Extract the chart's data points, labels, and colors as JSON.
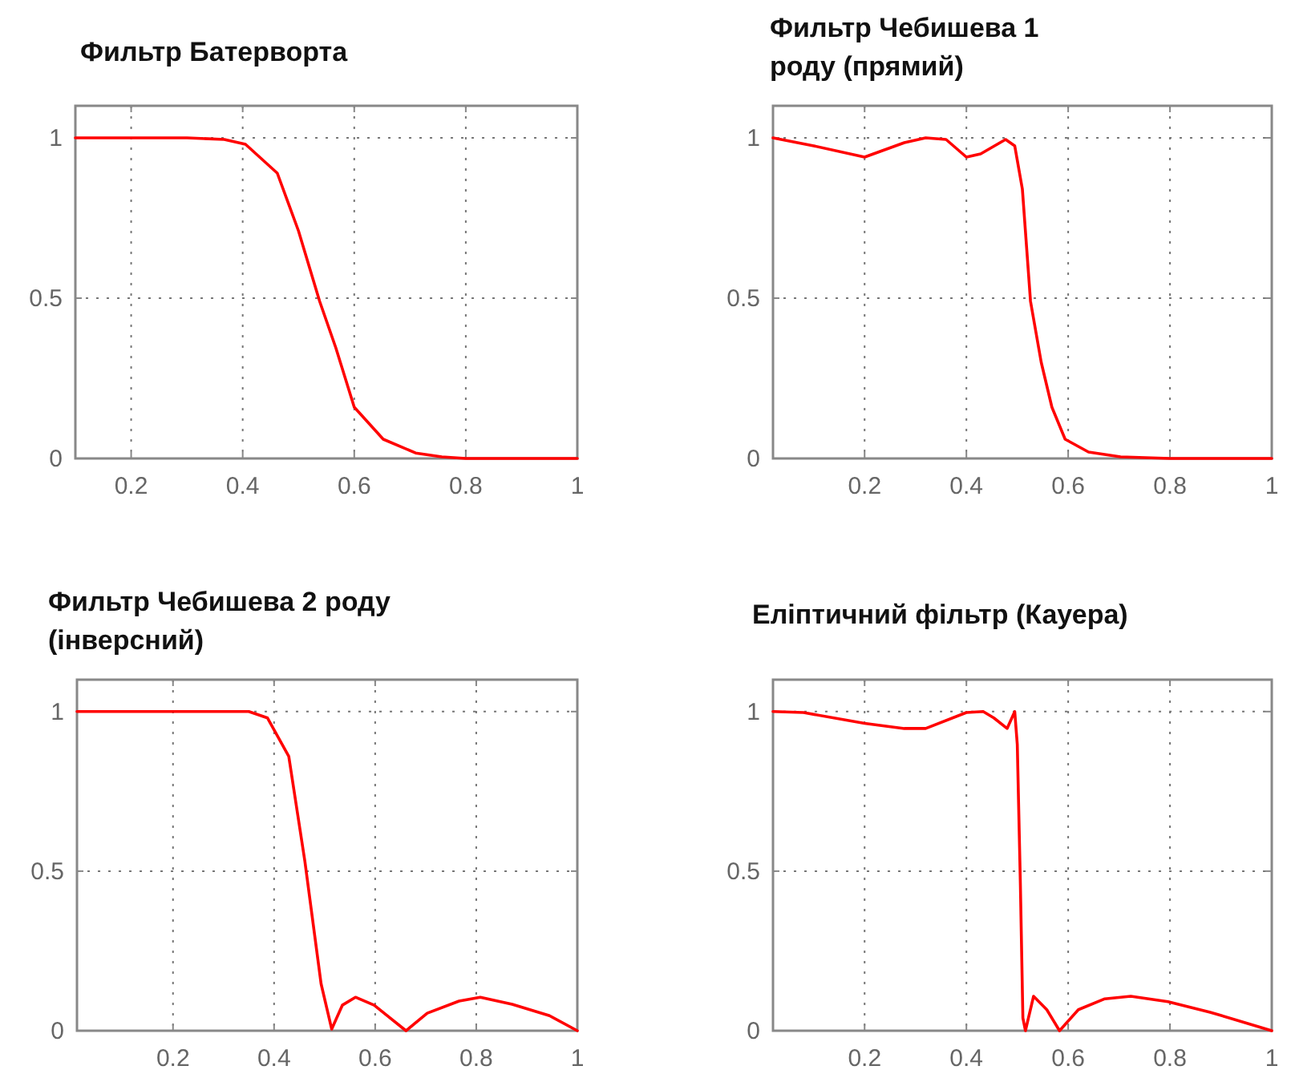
{
  "chart_data": [
    {
      "type": "line",
      "title": "Фильтр Батерворта",
      "xlim": [
        0.1,
        1
      ],
      "ylim": [
        0,
        1.1
      ],
      "xticks": [
        0.2,
        0.4,
        0.6,
        0.8,
        1
      ],
      "yticks": [
        0,
        0.5,
        1
      ],
      "grid": true,
      "line_style": "solid",
      "series": [
        {
          "color": "#ff0000",
          "x": [
            0.1,
            0.2,
            0.3,
            0.367,
            0.405,
            0.462,
            0.5,
            0.538,
            0.567,
            0.6,
            0.652,
            0.71,
            0.757,
            0.8,
            0.9,
            1
          ],
          "values": [
            1,
            1,
            1,
            0.995,
            0.98,
            0.89,
            0.71,
            0.49,
            0.345,
            0.16,
            0.06,
            0.017,
            0.005,
            0,
            0,
            0
          ]
        }
      ]
    },
    {
      "type": "line",
      "title": "Фильтр Чебишева 1\nроду (прямий)",
      "xlim": [
        0.02,
        1
      ],
      "ylim": [
        0,
        1.1
      ],
      "xticks": [
        0.2,
        0.4,
        0.6,
        0.8,
        1
      ],
      "yticks": [
        0,
        0.5,
        1
      ],
      "grid": true,
      "line_style": "solid",
      "series": [
        {
          "color": "#ff0000",
          "x": [
            0.02,
            0.1,
            0.2,
            0.278,
            0.32,
            0.36,
            0.4,
            0.428,
            0.477,
            0.495,
            0.51,
            0.526,
            0.547,
            0.568,
            0.594,
            0.64,
            0.703,
            0.8,
            1
          ],
          "values": [
            1,
            0.975,
            0.94,
            0.985,
            1,
            0.995,
            0.94,
            0.95,
            0.995,
            0.975,
            0.84,
            0.49,
            0.3,
            0.16,
            0.06,
            0.02,
            0.005,
            0,
            0
          ]
        }
      ]
    },
    {
      "type": "line",
      "title": "Фильтр Чебишева 2 роду\n(інверсний)",
      "xlim": [
        0.01,
        1
      ],
      "ylim": [
        0,
        1.1
      ],
      "xticks": [
        0.2,
        0.4,
        0.6,
        0.8,
        1
      ],
      "yticks": [
        0,
        0.5,
        1
      ],
      "grid": true,
      "line_style": "solid",
      "series": [
        {
          "color": "#ff0000",
          "x": [
            0.01,
            0.2,
            0.35,
            0.387,
            0.429,
            0.461,
            0.493,
            0.514,
            0.535,
            0.561,
            0.598,
            0.661,
            0.703,
            0.766,
            0.808,
            0.871,
            0.945,
            1
          ],
          "values": [
            1,
            1,
            1,
            0.98,
            0.86,
            0.53,
            0.147,
            0.005,
            0.08,
            0.105,
            0.08,
            0,
            0.055,
            0.093,
            0.105,
            0.083,
            0.047,
            0
          ]
        }
      ]
    },
    {
      "type": "line",
      "title": "Еліптичний фільтр (Кауера)",
      "xlim": [
        0.02,
        1
      ],
      "ylim": [
        0,
        1.1
      ],
      "xticks": [
        0.2,
        0.4,
        0.6,
        0.8,
        1
      ],
      "yticks": [
        0,
        0.5,
        1
      ],
      "grid": true,
      "line_style": "solid",
      "series": [
        {
          "color": "#ff0000",
          "x": [
            0.02,
            0.08,
            0.2,
            0.278,
            0.32,
            0.4,
            0.433,
            0.454,
            0.48,
            0.495,
            0.5,
            0.506,
            0.511,
            0.516,
            0.532,
            0.558,
            0.583,
            0.62,
            0.672,
            0.723,
            0.796,
            0.879,
            1
          ],
          "values": [
            1,
            0.997,
            0.963,
            0.947,
            0.947,
            0.997,
            1,
            0.98,
            0.947,
            1,
            0.897,
            0.465,
            0.04,
            0,
            0.108,
            0.066,
            0,
            0.066,
            0.1,
            0.108,
            0.091,
            0.058,
            0
          ]
        }
      ]
    }
  ]
}
